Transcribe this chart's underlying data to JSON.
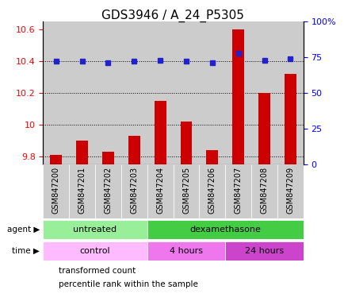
{
  "title": "GDS3946 / A_24_P5305",
  "samples": [
    "GSM847200",
    "GSM847201",
    "GSM847202",
    "GSM847203",
    "GSM847204",
    "GSM847205",
    "GSM847206",
    "GSM847207",
    "GSM847208",
    "GSM847209"
  ],
  "transformed_count": [
    9.81,
    9.9,
    9.83,
    9.93,
    10.15,
    10.02,
    9.84,
    10.6,
    10.2,
    10.32
  ],
  "percentile_rank": [
    72,
    72,
    71,
    72,
    73,
    72,
    71,
    78,
    73,
    74
  ],
  "ylim_left": [
    9.75,
    10.65
  ],
  "ylim_right": [
    0,
    100
  ],
  "yticks_left": [
    9.8,
    10.0,
    10.2,
    10.4,
    10.6
  ],
  "ytick_labels_left": [
    "9.8",
    "10",
    "10.2",
    "10.4",
    "10.6"
  ],
  "ytick_labels_right": [
    "0",
    "25",
    "50",
    "75",
    "100%"
  ],
  "hlines": [
    9.8,
    10.0,
    10.2,
    10.4
  ],
  "bar_color": "#cc0000",
  "dot_color": "#2222cc",
  "bar_baseline": 9.75,
  "agent_groups": [
    {
      "label": "untreated",
      "start": 0,
      "end": 4,
      "color": "#99ee99"
    },
    {
      "label": "dexamethasone",
      "start": 4,
      "end": 10,
      "color": "#44cc44"
    }
  ],
  "time_groups": [
    {
      "label": "control",
      "start": 0,
      "end": 4,
      "color": "#ffbbff"
    },
    {
      "label": "4 hours",
      "start": 4,
      "end": 7,
      "color": "#ee77ee"
    },
    {
      "label": "24 hours",
      "start": 7,
      "end": 10,
      "color": "#cc44cc"
    }
  ],
  "legend_red_label": "transformed count",
  "legend_blue_label": "percentile rank within the sample",
  "sample_bg_color": "#cccccc",
  "title_fontsize": 11,
  "tick_fontsize": 8,
  "sample_fontsize": 7
}
